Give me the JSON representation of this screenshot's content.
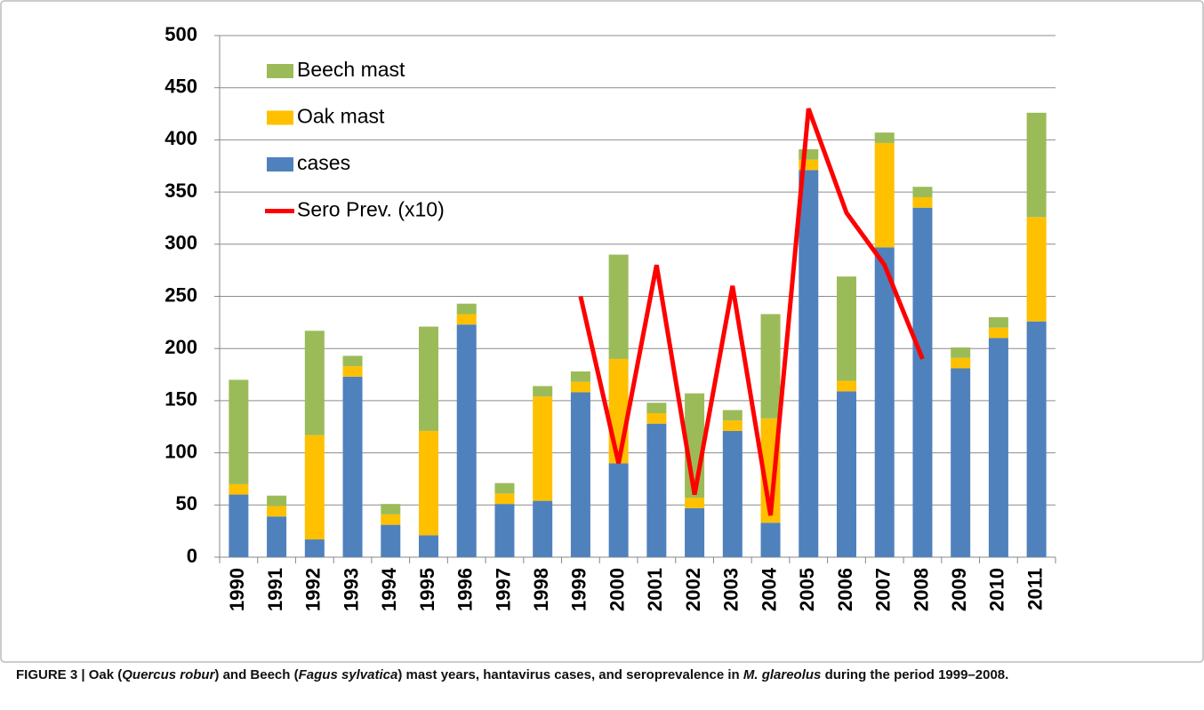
{
  "chart_data": {
    "type": "bar",
    "stacked": true,
    "categories": [
      "1990",
      "1991",
      "1992",
      "1993",
      "1994",
      "1995",
      "1996",
      "1997",
      "1998",
      "1999",
      "2000",
      "2001",
      "2002",
      "2003",
      "2004",
      "2005",
      "2006",
      "2007",
      "2008",
      "2009",
      "2010",
      "2011"
    ],
    "series": [
      {
        "name": "cases",
        "color": "#4f81bd",
        "values": [
          60,
          39,
          17,
          173,
          31,
          21,
          223,
          51,
          54,
          158,
          90,
          128,
          47,
          121,
          33,
          371,
          159,
          297,
          335,
          181,
          210,
          226
        ]
      },
      {
        "name": "Oak mast",
        "color": "#ffc000",
        "values": [
          10,
          10,
          100,
          10,
          10,
          100,
          10,
          10,
          100,
          10,
          100,
          10,
          10,
          10,
          100,
          10,
          10,
          100,
          10,
          10,
          10,
          100
        ]
      },
      {
        "name": "Beech mast",
        "color": "#9bbb59",
        "values": [
          100,
          10,
          100,
          10,
          10,
          100,
          10,
          10,
          10,
          10,
          100,
          10,
          100,
          10,
          100,
          10,
          100,
          10,
          10,
          10,
          10,
          100
        ]
      },
      {
        "name": "Sero Prev. (x10)",
        "type": "line",
        "color": "#ff0000",
        "values": [
          null,
          null,
          null,
          null,
          null,
          null,
          null,
          null,
          null,
          250,
          90,
          280,
          60,
          260,
          40,
          430,
          330,
          280,
          190,
          null,
          null,
          null
        ]
      }
    ],
    "ylim": [
      0,
      500
    ],
    "yticks": [
      0,
      50,
      100,
      150,
      200,
      250,
      300,
      350,
      400,
      450,
      500
    ],
    "grid": true,
    "legend": "upper left"
  },
  "caption": [
    "FIGURE 3 | Oak (",
    "Quercus robur",
    ") and Beech (",
    "Fagus sylvatica",
    ") mast years, hantavirus cases, and seroprevalence in ",
    "M. glareolus",
    " during the period 1999–2008."
  ]
}
